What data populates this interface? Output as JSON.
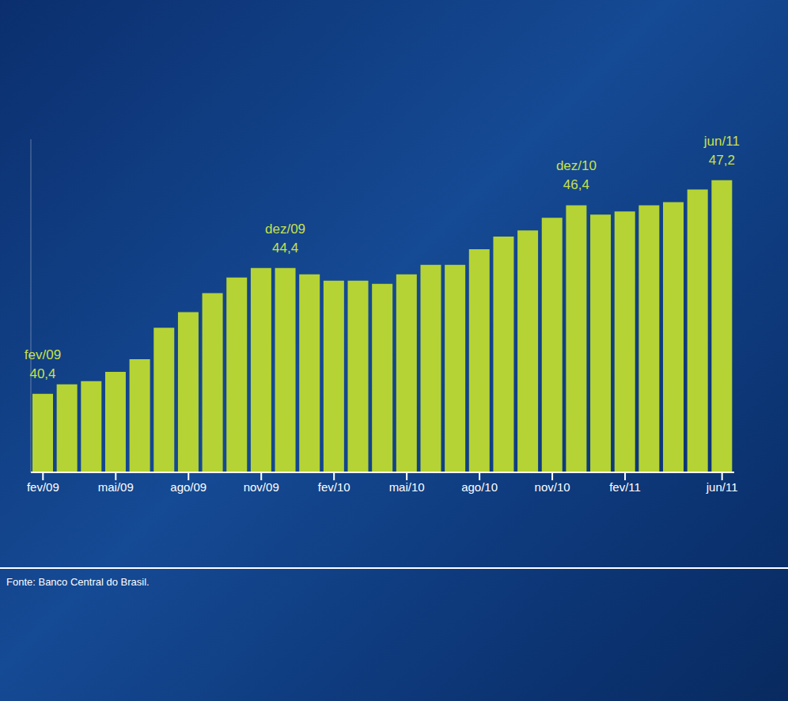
{
  "chart_data": {
    "type": "bar",
    "categories": [
      "fev/09",
      null,
      null,
      "mai/09",
      null,
      null,
      "ago/09",
      null,
      null,
      "nov/09",
      null,
      null,
      "fev/10",
      null,
      null,
      "mai/10",
      null,
      null,
      "ago/10",
      null,
      null,
      "nov/10",
      null,
      null,
      "fev/11",
      null,
      null,
      null,
      "jun/11"
    ],
    "values": [
      40.4,
      40.7,
      40.8,
      41.1,
      41.5,
      42.5,
      43.0,
      43.6,
      44.1,
      44.4,
      44.4,
      44.2,
      44.0,
      44.0,
      43.9,
      44.2,
      44.5,
      44.5,
      45.0,
      45.4,
      45.6,
      46.0,
      46.4,
      46.1,
      46.2,
      46.4,
      46.5,
      46.9,
      47.2
    ],
    "annotations": [
      "fev/09",
      null,
      null,
      null,
      null,
      null,
      null,
      null,
      null,
      null,
      "dez/09",
      null,
      null,
      null,
      null,
      null,
      null,
      null,
      null,
      null,
      null,
      null,
      "dez/10",
      null,
      null,
      null,
      null,
      null,
      "jun/11"
    ],
    "value_labels": [
      "40,4",
      null,
      null,
      null,
      null,
      null,
      null,
      null,
      null,
      null,
      "44,4",
      null,
      null,
      null,
      null,
      null,
      null,
      null,
      null,
      null,
      null,
      null,
      "46,4",
      null,
      null,
      null,
      null,
      null,
      "47,2"
    ],
    "data_labels": true,
    "color": "#b5d334",
    "ylim": [
      37.9,
      48.5
    ],
    "yticks": [],
    "tick_labels": "x",
    "grid": false,
    "source": "Fonte: Banco Central do Brasil."
  }
}
